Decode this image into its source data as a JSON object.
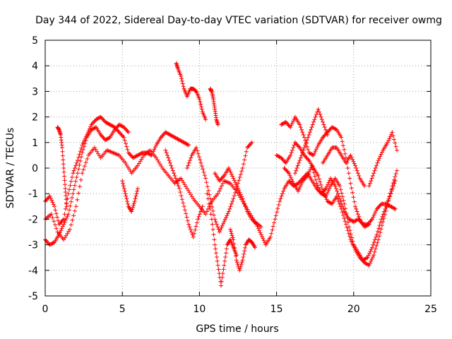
{
  "chart_data": {
    "type": "scatter",
    "title": "Day 344 of 2022, Sidereal Day-to-day VTEC variation (SDTVAR) for receiver owmg",
    "xlabel": "GPS time / hours",
    "ylabel": "SDTVAR / TECUs",
    "xlim": [
      0,
      25
    ],
    "ylim": [
      -5,
      5
    ],
    "xticks": [
      "0",
      "5",
      "10",
      "15",
      "20",
      "25"
    ],
    "yticks": [
      "-5",
      "-4",
      "-3",
      "-2",
      "-1",
      "0",
      "1",
      "2",
      "3",
      "4",
      "5"
    ],
    "grid": true,
    "marker": "+",
    "color": "#ff0000",
    "series": [
      {
        "name": "t1",
        "x": [
          0,
          0.3,
          0.6,
          0.9,
          1.2,
          1.5,
          1.8,
          2.1,
          2.4,
          2.7,
          3.0,
          3.3,
          3.6,
          3.9,
          4.2,
          4.5,
          4.8,
          5.1,
          5.4,
          5.7,
          6.0,
          6.3,
          6.6,
          6.9,
          7.2,
          7.5,
          7.8,
          8.1,
          8.4,
          8.7,
          9.0,
          9.3
        ],
        "y": [
          -1.3,
          -1.1,
          -1.5,
          -2.2,
          -2.0,
          -1.0,
          -0.2,
          0.3,
          0.9,
          1.3,
          1.7,
          1.9,
          2.0,
          1.8,
          1.7,
          1.6,
          1.4,
          1.2,
          0.6,
          0.4,
          0.5,
          0.6,
          0.6,
          0.5,
          0.9,
          1.2,
          1.4,
          1.3,
          1.2,
          1.1,
          1.0,
          0.9
        ]
      },
      {
        "name": "t2",
        "x": [
          0,
          0.3,
          0.6,
          0.9,
          1.2,
          1.5,
          1.8,
          2.1,
          2.4,
          2.7,
          3.0,
          3.3,
          3.6,
          3.9,
          4.2,
          4.5,
          4.8,
          5.1,
          5.4
        ],
        "y": [
          -2.8,
          -3.0,
          -2.9,
          -2.6,
          -2.2,
          -1.8,
          -1.0,
          -0.2,
          0.6,
          1.2,
          1.5,
          1.6,
          1.3,
          1.1,
          1.2,
          1.5,
          1.7,
          1.6,
          1.4
        ]
      },
      {
        "name": "t3",
        "x": [
          0,
          0.4,
          0.8,
          1.2,
          1.6,
          2.0,
          2.4,
          2.8,
          3.2,
          3.6,
          4.0,
          4.4,
          4.8,
          5.2,
          5.6,
          6.0,
          6.4,
          6.8,
          7.2,
          7.6,
          8.0,
          8.4,
          8.8,
          9.2,
          9.6,
          10.0,
          10.4,
          10.8,
          11.2,
          11.6,
          12.0,
          12.4,
          12.8,
          13.2,
          13.6,
          14.0
        ],
        "y": [
          -2.0,
          -1.8,
          -2.5,
          -2.8,
          -2.4,
          -1.5,
          -0.2,
          0.5,
          0.8,
          0.4,
          0.7,
          0.6,
          0.5,
          0.2,
          -0.2,
          0.1,
          0.5,
          0.7,
          0.4,
          0.0,
          -0.3,
          -0.6,
          -0.4,
          -0.8,
          -1.2,
          -1.5,
          -1.8,
          -1.3,
          -1.0,
          -0.5,
          -0.6,
          -0.9,
          -1.3,
          -1.7,
          -2.1,
          -2.3
        ]
      },
      {
        "name": "t4",
        "x": [
          0.8,
          0.9,
          1.0,
          1.1,
          1.2,
          1.3,
          1.4
        ],
        "y": [
          1.6,
          1.5,
          1.3,
          0.8,
          0.0,
          -0.8,
          -1.5
        ]
      },
      {
        "name": "t5",
        "x": [
          5.0,
          5.2,
          5.4,
          5.6,
          5.8,
          6.0
        ],
        "y": [
          -0.5,
          -1.0,
          -1.5,
          -1.7,
          -1.3,
          -0.8
        ]
      },
      {
        "name": "t6",
        "x": [
          7.8,
          8.1,
          8.4,
          8.7,
          9.0,
          9.3,
          9.6,
          9.9,
          10.2
        ],
        "y": [
          0.7,
          0.2,
          -0.3,
          -0.8,
          -1.5,
          -2.2,
          -2.7,
          -2.0,
          -1.5
        ]
      },
      {
        "name": "t7",
        "x": [
          8.5,
          8.6,
          8.8,
          9.0,
          9.2,
          9.4,
          9.6,
          9.8,
          10.0,
          10.2,
          10.4
        ],
        "y": [
          4.1,
          3.9,
          3.6,
          3.1,
          2.8,
          3.1,
          3.1,
          3.0,
          2.7,
          2.2,
          1.9
        ]
      },
      {
        "name": "t8",
        "x": [
          10.7,
          10.8,
          10.9,
          11.0,
          11.1,
          11.2
        ],
        "y": [
          3.1,
          3.0,
          2.7,
          2.3,
          1.9,
          1.7
        ]
      },
      {
        "name": "t9",
        "x": [
          9.2,
          9.5,
          9.8,
          10.1,
          10.4,
          10.7,
          11.0,
          11.3,
          11.6,
          11.9,
          12.2,
          12.5,
          12.8,
          13.1,
          13.4
        ],
        "y": [
          0.0,
          0.5,
          0.8,
          0.2,
          -0.4,
          -1.2,
          -2.0,
          -2.5,
          -2.1,
          -1.7,
          -1.2,
          -0.6,
          0.0,
          0.8,
          1.0
        ]
      },
      {
        "name": "t10",
        "x": [
          10.5,
          10.8,
          11.0,
          11.2,
          11.4,
          11.6,
          11.8,
          12.0,
          12.2,
          12.4
        ],
        "y": [
          -1.0,
          -2.0,
          -3.0,
          -3.8,
          -4.6,
          -3.8,
          -3.0,
          -2.8,
          -3.1,
          -3.4
        ]
      },
      {
        "name": "t11",
        "x": [
          12.0,
          12.2,
          12.4,
          12.6,
          12.8,
          13.0,
          13.2,
          13.4,
          13.6
        ],
        "y": [
          -2.4,
          -2.8,
          -3.6,
          -4.0,
          -3.6,
          -3.0,
          -2.8,
          -2.9,
          -3.1
        ]
      },
      {
        "name": "t12",
        "x": [
          11.0,
          11.3,
          11.6,
          11.9,
          12.2,
          12.5,
          12.8,
          13.1,
          13.4,
          13.7,
          14.0,
          14.3,
          14.6,
          14.9,
          15.2,
          15.5,
          15.8,
          16.1,
          16.4,
          16.7,
          17.0,
          17.3,
          17.6,
          17.9,
          18.2,
          18.5,
          18.8,
          19.1,
          19.4,
          19.7,
          20.0,
          20.3,
          20.6,
          20.9,
          21.2,
          21.5,
          21.8,
          22.1,
          22.4,
          22.7
        ],
        "y": [
          -0.2,
          -0.5,
          -0.3,
          0.0,
          -0.4,
          -0.8,
          -1.2,
          -1.7,
          -2.0,
          -2.2,
          -2.6,
          -3.0,
          -2.7,
          -2.0,
          -1.3,
          -0.8,
          -0.5,
          -0.7,
          -0.6,
          -0.4,
          -0.2,
          -0.5,
          -0.8,
          -1.0,
          -0.8,
          -0.4,
          -0.7,
          -1.2,
          -1.7,
          -2.0,
          -2.1,
          -2.0,
          -2.2,
          -2.2,
          -2.0,
          -1.6,
          -1.4,
          -1.4,
          -1.5,
          -1.6
        ]
      },
      {
        "name": "t13",
        "x": [
          15.0,
          15.3,
          15.6,
          15.9,
          16.2,
          16.5,
          16.8,
          17.1,
          17.4,
          17.7,
          18.0,
          18.3,
          18.6,
          18.9,
          19.2,
          19.5,
          19.8,
          20.1,
          20.4,
          20.7,
          21.0,
          21.3,
          21.6,
          21.9,
          22.2,
          22.5,
          22.8
        ],
        "y": [
          0.5,
          0.4,
          0.2,
          0.5,
          1.0,
          0.8,
          0.5,
          0.3,
          0.0,
          -0.3,
          -0.9,
          -1.3,
          -1.4,
          -1.1,
          -1.6,
          -2.2,
          -2.8,
          -3.2,
          -3.5,
          -3.7,
          -3.8,
          -3.4,
          -2.8,
          -2.1,
          -1.4,
          -0.7,
          -0.1
        ]
      },
      {
        "name": "t14",
        "x": [
          15.3,
          15.6,
          15.9,
          16.2,
          16.5,
          16.8,
          17.1,
          17.4,
          17.7,
          18.0,
          18.3,
          18.6,
          18.9,
          19.2,
          19.5,
          19.8,
          20.1,
          20.4,
          20.7,
          21.0
        ],
        "y": [
          1.7,
          1.8,
          1.6,
          2.0,
          1.7,
          1.2,
          0.6,
          0.5,
          0.9,
          1.2,
          1.4,
          1.6,
          1.5,
          1.2,
          0.4,
          -0.6,
          -1.5,
          -2.0,
          -2.3,
          -2.2
        ]
      },
      {
        "name": "t15",
        "x": [
          15.5,
          15.8,
          16.1,
          16.4,
          16.7,
          17.0,
          17.3,
          17.6,
          17.9,
          18.2,
          18.5,
          18.8,
          19.1,
          19.4,
          19.7,
          20.0,
          20.3,
          20.6,
          20.9,
          21.2,
          21.5,
          21.8,
          22.1,
          22.4,
          22.7
        ],
        "y": [
          0.0,
          -0.2,
          -0.6,
          -0.9,
          -0.5,
          -0.3,
          0.1,
          -0.6,
          -1.0,
          -1.1,
          -0.7,
          -0.4,
          -0.7,
          -1.4,
          -2.3,
          -3.0,
          -3.3,
          -3.6,
          -3.5,
          -3.1,
          -2.6,
          -2.0,
          -1.5,
          -1.0,
          -0.5
        ]
      },
      {
        "name": "t16",
        "x": [
          16.2,
          16.5,
          16.8,
          17.1,
          17.4,
          17.7,
          18.0,
          18.3
        ],
        "y": [
          -0.2,
          0.3,
          0.8,
          1.3,
          1.8,
          2.3,
          1.8,
          1.3
        ]
      },
      {
        "name": "t17",
        "x": [
          18.0,
          18.3,
          18.6,
          18.9,
          19.2,
          19.5,
          19.8,
          20.1,
          20.4,
          20.7
        ],
        "y": [
          0.2,
          0.5,
          0.8,
          0.8,
          0.5,
          0.2,
          0.5,
          0.1,
          -0.4,
          -0.7
        ]
      },
      {
        "name": "t18",
        "x": [
          21.0,
          21.3,
          21.6,
          21.9,
          22.2,
          22.5,
          22.8
        ],
        "y": [
          -0.7,
          -0.2,
          0.3,
          0.7,
          1.0,
          1.4,
          0.7
        ]
      }
    ]
  }
}
